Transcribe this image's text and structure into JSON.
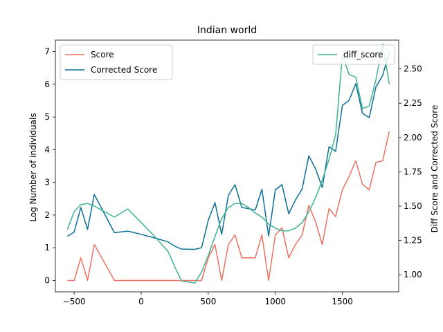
{
  "chart_data": {
    "type": "line",
    "title": "Indian world",
    "xlabel": "",
    "ylabel": "Log Number of individuals",
    "y2label": "Diff Score and Corrected Score",
    "xlim": [
      -640,
      1920
    ],
    "ylim": [
      -0.35,
      7.35
    ],
    "y2lim": [
      0.875,
      2.71
    ],
    "xticks": [
      -500,
      0,
      500,
      1000,
      1500
    ],
    "yticks": [
      0,
      1,
      2,
      3,
      4,
      5,
      6,
      7
    ],
    "y2ticks": [
      1.0,
      1.25,
      1.5,
      1.75,
      2.0,
      2.25,
      2.5
    ],
    "grid": false,
    "legend_left": "upper-left",
    "legend_right": "upper-right",
    "series": [
      {
        "name": "Score",
        "axis": "left",
        "color": "#f07060",
        "x": [
          -550,
          -500,
          -450,
          -400,
          -350,
          -200,
          0,
          100,
          200,
          250,
          300,
          400,
          450,
          500,
          550,
          600,
          650,
          700,
          750,
          800,
          850,
          900,
          950,
          1000,
          1050,
          1100,
          1150,
          1200,
          1250,
          1300,
          1350,
          1400,
          1450,
          1500,
          1550,
          1600,
          1650,
          1700,
          1750,
          1800,
          1850
        ],
        "values": [
          0,
          0,
          0.69,
          0,
          1.1,
          0,
          0,
          0,
          0,
          0,
          0,
          0,
          0,
          0.69,
          1.1,
          0,
          1.1,
          1.39,
          0.69,
          0.69,
          0.69,
          1.39,
          0,
          1.39,
          1.61,
          0.69,
          1.1,
          1.39,
          2.3,
          1.79,
          1.1,
          2.2,
          1.95,
          2.77,
          3.18,
          3.66,
          2.94,
          2.77,
          3.61,
          3.66,
          4.56
        ]
      },
      {
        "name": "Corrected Score",
        "axis": "left",
        "color": "#0a6e99",
        "x": [
          -550,
          -500,
          -450,
          -400,
          -350,
          -200,
          -100,
          0,
          100,
          200,
          250,
          300,
          400,
          450,
          500,
          550,
          600,
          650,
          700,
          750,
          800,
          850,
          900,
          950,
          1000,
          1050,
          1100,
          1150,
          1200,
          1250,
          1300,
          1350,
          1400,
          1450,
          1500,
          1550,
          1600,
          1650,
          1700,
          1750,
          1800,
          1850
        ],
        "values": [
          1.35,
          1.48,
          2.23,
          1.56,
          2.63,
          1.46,
          1.51,
          1.41,
          1.3,
          1.18,
          1.05,
          0.96,
          0.95,
          1.0,
          1.84,
          2.38,
          1.41,
          2.6,
          2.93,
          2.23,
          2.2,
          2.15,
          2.79,
          1.36,
          2.77,
          2.93,
          2.04,
          2.46,
          2.8,
          3.81,
          3.41,
          2.84,
          4.09,
          3.95,
          5.35,
          5.51,
          6.02,
          5.11,
          4.98,
          5.92,
          6.27,
          7.0
        ]
      },
      {
        "name": "diff_score",
        "axis": "right",
        "color": "#3cb492",
        "x": [
          -550,
          -500,
          -450,
          -400,
          -350,
          -200,
          -100,
          0,
          100,
          200,
          250,
          300,
          400,
          450,
          500,
          550,
          600,
          650,
          700,
          750,
          800,
          850,
          900,
          950,
          1000,
          1050,
          1100,
          1150,
          1200,
          1250,
          1300,
          1350,
          1400,
          1450,
          1500,
          1550,
          1600,
          1650,
          1700,
          1750,
          1800,
          1850
        ],
        "values": [
          1.33,
          1.46,
          1.51,
          1.52,
          1.5,
          1.42,
          1.48,
          1.38,
          1.28,
          1.17,
          1.06,
          0.955,
          0.94,
          1.02,
          1.14,
          1.28,
          1.41,
          1.49,
          1.52,
          1.52,
          1.49,
          1.45,
          1.42,
          1.37,
          1.34,
          1.32,
          1.32,
          1.34,
          1.38,
          1.46,
          1.56,
          1.69,
          1.84,
          2.02,
          2.6,
          2.46,
          2.44,
          2.21,
          2.23,
          2.42,
          2.68,
          2.39
        ]
      }
    ]
  }
}
